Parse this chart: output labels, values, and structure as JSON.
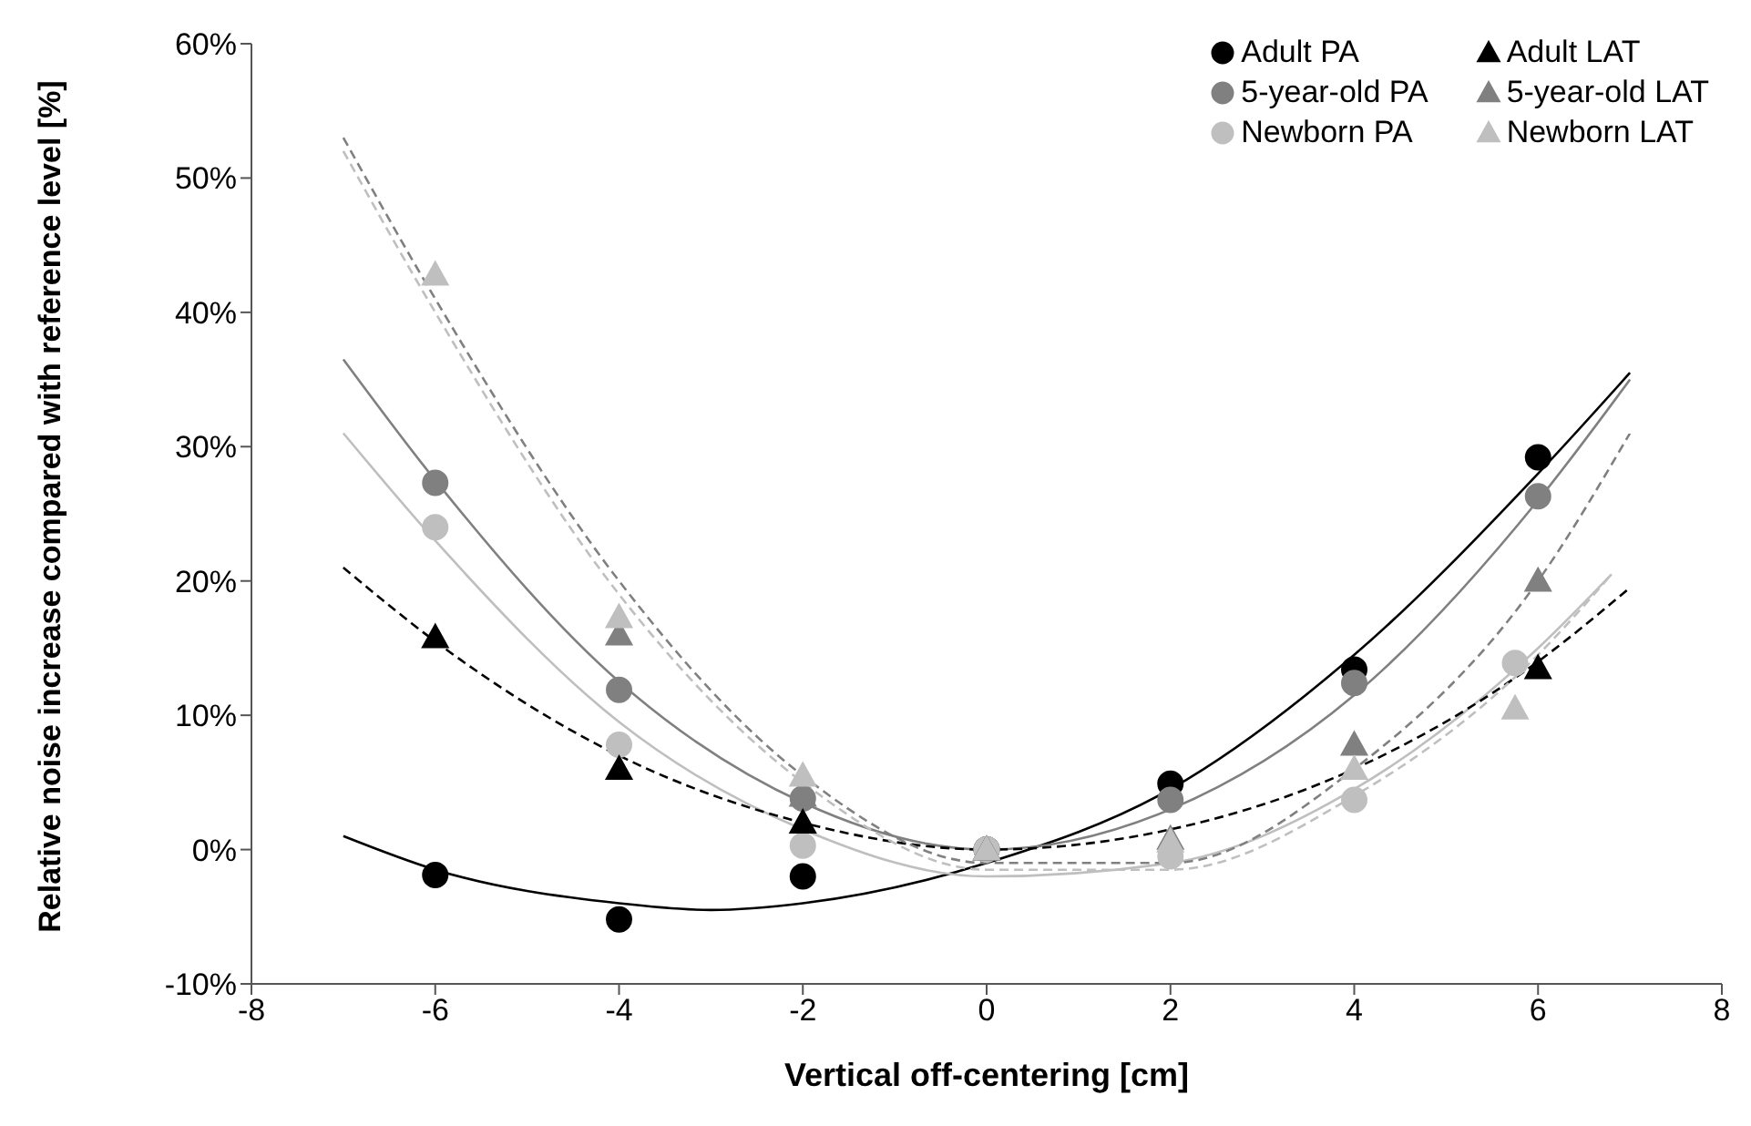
{
  "chart_data": {
    "type": "scatter",
    "xlabel": "Vertical off-centering [cm]",
    "ylabel": "Relative noise increase compared with reference level [%]",
    "xlim": [
      -8,
      8
    ],
    "xticks": [
      -8,
      -6,
      -4,
      -2,
      0,
      2,
      4,
      6,
      8
    ],
    "ylim": [
      -10,
      60
    ],
    "yticks": [
      {
        "value": -10,
        "label": "-10%"
      },
      {
        "value": 0,
        "label": "0%"
      },
      {
        "value": 10,
        "label": "10%"
      },
      {
        "value": 20,
        "label": "20%"
      },
      {
        "value": 30,
        "label": "30%"
      },
      {
        "value": 40,
        "label": "40%"
      },
      {
        "value": 50,
        "label": "50%"
      },
      {
        "value": 60,
        "label": "60%"
      }
    ],
    "grid": false,
    "legend": "top right",
    "series": [
      {
        "name": "Adult PA",
        "color": "#000000",
        "marker": "circle",
        "x": [
          -6,
          -4,
          -2,
          0,
          2,
          4,
          6
        ],
        "values": [
          -1.9,
          -5.2,
          -2,
          0,
          4.9,
          13.4,
          29.2
        ]
      },
      {
        "name": "5-year-old PA",
        "color": "#808080",
        "marker": "circle",
        "x": [
          -6,
          -4,
          -2,
          0,
          2,
          4,
          6
        ],
        "values": [
          27.3,
          11.9,
          3.8,
          0,
          3.7,
          12.4,
          26.3
        ]
      },
      {
        "name": "Newborn PA",
        "color": "#bfbfbf",
        "marker": "circle",
        "x": [
          -6,
          -4,
          -2,
          0,
          2,
          4,
          5.75
        ],
        "values": [
          24,
          7.8,
          0.3,
          0,
          -0.5,
          3.7,
          13.9
        ]
      },
      {
        "name": "Adult LAT",
        "color": "#000000",
        "marker": "triangle",
        "x": [
          -6,
          -4,
          -2,
          0,
          6
        ],
        "values": [
          15.8,
          6,
          2,
          0,
          13.5
        ]
      },
      {
        "name": "5-year-old LAT",
        "color": "#808080",
        "marker": "triangle",
        "x": [
          -4,
          -2,
          0,
          2,
          4,
          6
        ],
        "values": [
          16,
          4,
          0,
          0.8,
          7.8,
          20
        ]
      },
      {
        "name": "Newborn LAT",
        "color": "#bfbfbf",
        "marker": "triangle",
        "x": [
          -6,
          -4,
          -2,
          0,
          2,
          4,
          5.75
        ],
        "values": [
          42.8,
          17.3,
          5.5,
          0,
          0.6,
          6,
          10.5
        ]
      },
      {
        "type": "line",
        "color": "#000000",
        "line_style": "solid",
        "marker": "none",
        "x": [
          -7,
          -6,
          -4,
          -3,
          -2,
          0,
          2,
          4,
          6,
          7
        ],
        "values": [
          1,
          -1.5,
          -4,
          -4.5,
          -4,
          -1,
          4.5,
          14.5,
          28,
          35.5
        ]
      },
      {
        "type": "line",
        "color": "#808080",
        "line_style": "solid",
        "marker": "none",
        "x": [
          -7,
          -6,
          -4,
          -2,
          0,
          2,
          4,
          6,
          7
        ],
        "values": [
          36.5,
          27.5,
          12.5,
          3.5,
          0,
          3,
          11.5,
          26,
          35
        ]
      },
      {
        "type": "line",
        "color": "#bfbfbf",
        "line_style": "solid",
        "marker": "none",
        "x": [
          -7,
          -6,
          -4,
          -2,
          0,
          2,
          4,
          6,
          6.8
        ],
        "values": [
          31,
          23,
          9.5,
          1.5,
          -2,
          -1,
          4.5,
          15,
          20.5
        ]
      },
      {
        "type": "line",
        "color": "#000000",
        "line_style": "dashed",
        "marker": "none",
        "x": [
          -7,
          -6,
          -4,
          -2,
          0,
          2,
          4,
          6,
          7
        ],
        "values": [
          21,
          15.5,
          7,
          2,
          0,
          1.5,
          6,
          14,
          19.5
        ]
      },
      {
        "type": "line",
        "color": "#808080",
        "line_style": "dashed",
        "marker": "none",
        "x": [
          -7,
          -6,
          -4,
          -2,
          0,
          2,
          4,
          6,
          7
        ],
        "values": [
          53,
          41,
          20,
          5.5,
          -1,
          -1,
          6,
          20,
          31
        ]
      },
      {
        "type": "line",
        "color": "#bfbfbf",
        "line_style": "dashed",
        "marker": "none",
        "x": [
          -7,
          -6,
          -4,
          -2,
          0,
          2,
          4,
          6,
          6.8
        ],
        "values": [
          52,
          40,
          19,
          5,
          -1.5,
          -1.5,
          4,
          14.5,
          20.5
        ]
      }
    ]
  }
}
